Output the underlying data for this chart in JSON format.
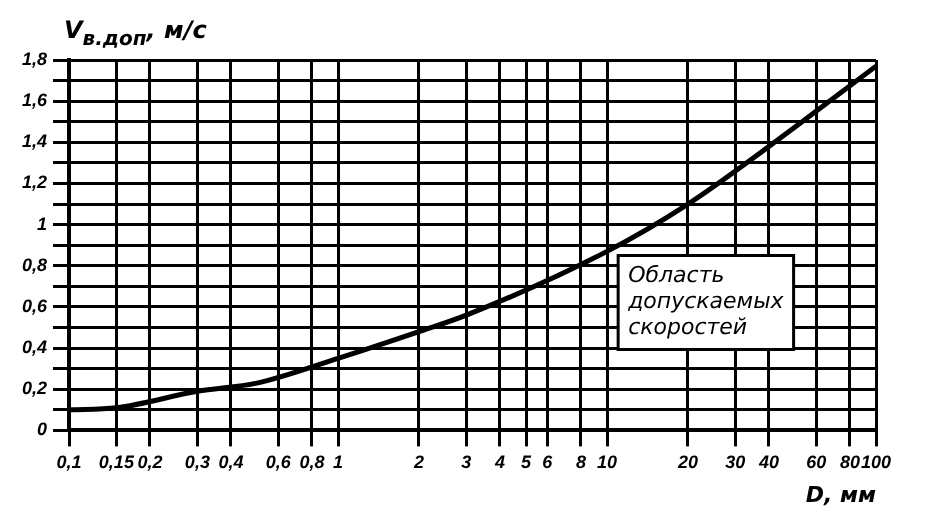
{
  "chart_data": {
    "type": "line",
    "ylabel": "V$_{в.доп}$, м/с",
    "xlabel": "D, мм",
    "log": "x",
    "x": [
      0.1,
      0.15,
      0.3,
      0.5,
      1,
      2,
      3,
      10,
      20,
      40,
      100
    ],
    "series": [
      {
        "color": "#000000",
        "values": [
          0.1,
          0.11,
          0.19,
          0.23,
          0.35,
          0.48,
          0.56,
          0.87,
          1.1,
          1.38,
          1.77
        ]
      }
    ],
    "xlim": [
      0.1,
      100
    ],
    "xticks": [
      {
        "value": 0.1,
        "label": "0,1"
      },
      {
        "value": 0.15,
        "label": "0,15"
      },
      {
        "value": 0.2,
        "label": "0,2"
      },
      {
        "value": 0.3,
        "label": "0,3"
      },
      {
        "value": 0.4,
        "label": "0,4"
      },
      {
        "value": 0.6,
        "label": "0,6"
      },
      {
        "value": 0.8,
        "label": "0,8"
      },
      1,
      2,
      3,
      4,
      5,
      6,
      8,
      10,
      20,
      30,
      40,
      60,
      80,
      100
    ],
    "ylim": [
      0,
      1.8
    ],
    "yticks": [
      0,
      {
        "value": 0.1,
        "label": null
      },
      {
        "value": 0.2,
        "label": "0,2"
      },
      {
        "value": 0.3,
        "label": null
      },
      {
        "value": 0.4,
        "label": "0,4"
      },
      {
        "value": 0.5,
        "label": null
      },
      {
        "value": 0.6,
        "label": "0,6"
      },
      {
        "value": 0.7,
        "label": null
      },
      {
        "value": 0.8,
        "label": "0,8"
      },
      {
        "value": 0.9,
        "label": null
      },
      1,
      {
        "value": 1.1,
        "label": null
      },
      {
        "value": 1.2,
        "label": "1,2"
      },
      {
        "value": 1.3,
        "label": null
      },
      {
        "value": 1.4,
        "label": "1,4"
      },
      {
        "value": 1.5,
        "label": null
      },
      {
        "value": 1.6,
        "label": "1,6"
      },
      {
        "value": 1.7,
        "label": null
      },
      {
        "value": 1.8,
        "label": "1,8"
      }
    ],
    "grid": true,
    "marker": "none",
    "line_style": "solid",
    "annotations": [
      "Область допускаемых скоростей"
    ]
  }
}
